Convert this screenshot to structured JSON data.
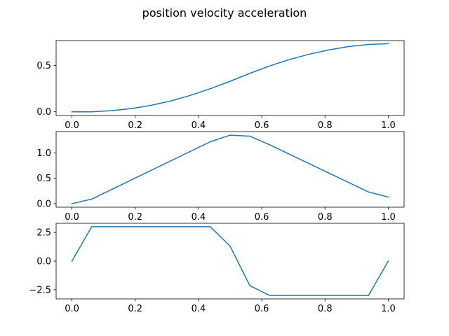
{
  "title": "position velocity acceleration",
  "chart_data": [
    {
      "type": "line",
      "series": [
        {
          "color": "#1f77b4",
          "x": [
            0.0,
            0.0625,
            0.125,
            0.1875,
            0.25,
            0.3125,
            0.375,
            0.4375,
            0.5,
            0.5625,
            0.625,
            0.6875,
            0.75,
            0.8125,
            0.875,
            0.9375,
            1.0
          ],
          "y": [
            0.0,
            0.0,
            0.012,
            0.035,
            0.07,
            0.117,
            0.178,
            0.25,
            0.33,
            0.416,
            0.496,
            0.565,
            0.623,
            0.67,
            0.706,
            0.728,
            0.737
          ]
        }
      ],
      "xlim": [
        -0.05,
        1.05
      ],
      "ylim": [
        -0.04,
        0.77
      ],
      "xticks": [
        0.0,
        0.2,
        0.4,
        0.6,
        0.8,
        1.0
      ],
      "xtick_labels": [
        "0.0",
        "0.2",
        "0.4",
        "0.6",
        "0.8",
        "1.0"
      ],
      "yticks": [
        0.0,
        0.5
      ],
      "ytick_labels": [
        "0.0",
        "0.5"
      ],
      "grid": false
    },
    {
      "type": "line",
      "series": [
        {
          "color": "#1f77b4",
          "x": [
            0.0,
            0.0625,
            0.4375,
            0.5,
            0.5625,
            0.625,
            0.9375,
            1.0
          ],
          "y": [
            0.0,
            0.09,
            1.22,
            1.35,
            1.33,
            1.16,
            0.23,
            0.13
          ]
        }
      ],
      "xlim": [
        -0.05,
        1.05
      ],
      "ylim": [
        -0.07,
        1.42
      ],
      "xticks": [
        0.0,
        0.2,
        0.4,
        0.6,
        0.8,
        1.0
      ],
      "xtick_labels": [
        "0.0",
        "0.2",
        "0.4",
        "0.6",
        "0.8",
        "1.0"
      ],
      "yticks": [
        0.0,
        0.5,
        1.0
      ],
      "ytick_labels": [
        "0.0",
        "0.5",
        "1.0"
      ],
      "grid": false
    },
    {
      "type": "line",
      "series": [
        {
          "color": "#1f77b4",
          "x": [
            0.0,
            0.0625,
            0.125,
            0.1875,
            0.25,
            0.3125,
            0.375,
            0.4375,
            0.5,
            0.5625,
            0.625,
            0.6875,
            0.75,
            0.8125,
            0.875,
            0.9375,
            1.0
          ],
          "y": [
            0.0,
            3.0,
            3.0,
            3.0,
            3.0,
            3.0,
            3.0,
            3.0,
            1.3,
            -2.15,
            -3.0,
            -3.0,
            -3.0,
            -3.0,
            -3.0,
            -3.0,
            0.0
          ]
        }
      ],
      "xlim": [
        -0.05,
        1.05
      ],
      "ylim": [
        -3.3,
        3.3
      ],
      "xticks": [
        0.0,
        0.2,
        0.4,
        0.6,
        0.8,
        1.0
      ],
      "xtick_labels": [
        "0.0",
        "0.2",
        "0.4",
        "0.6",
        "0.8",
        "1.0"
      ],
      "yticks": [
        -2.5,
        0.0,
        2.5
      ],
      "ytick_labels": [
        "−2.5",
        "0.0",
        "2.5"
      ],
      "grid": false
    }
  ]
}
